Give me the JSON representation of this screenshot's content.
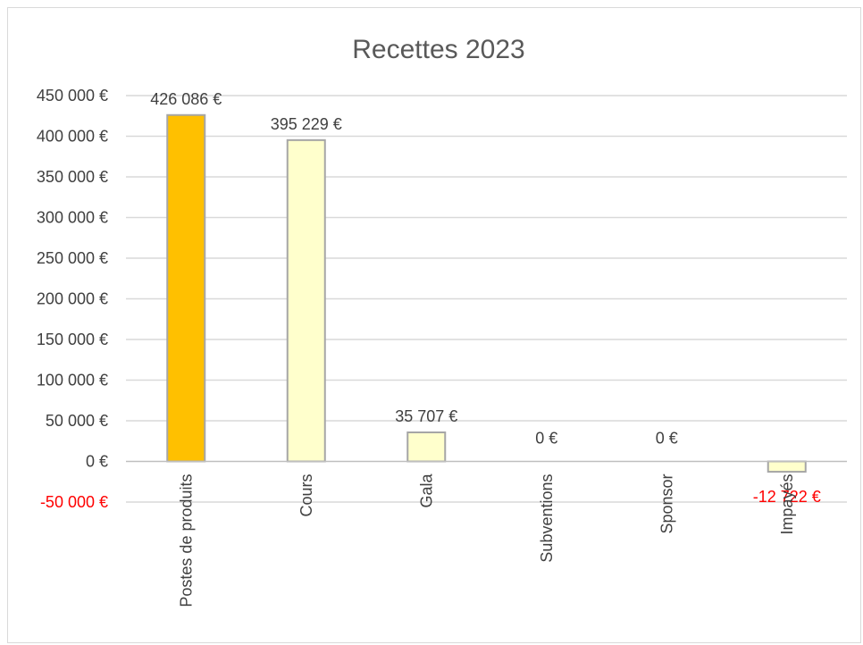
{
  "chart_data": {
    "type": "bar",
    "title": "Recettes 2023",
    "xlabel": "",
    "ylabel": "",
    "categories": [
      "Postes de produits",
      "Cours",
      "Gala",
      "Subventions",
      "Sponsor",
      "Impayés"
    ],
    "values": [
      426086,
      395229,
      35707,
      0,
      0,
      -12722
    ],
    "data_labels": [
      "426 086 €",
      "395 229 €",
      "35 707 €",
      "0 €",
      "0 €",
      "-12 722 €"
    ],
    "ylim": [
      -50000,
      450000
    ],
    "yticks": [
      -50000,
      0,
      50000,
      100000,
      150000,
      200000,
      250000,
      300000,
      350000,
      400000,
      450000
    ],
    "ytick_labels": [
      "-50 000 €",
      "0 €",
      "50 000 €",
      "100 000 €",
      "150 000 €",
      "200 000 €",
      "250 000 €",
      "300 000 €",
      "350 000 €",
      "400 000 €",
      "450 000 €"
    ],
    "grid": true,
    "legend": "none",
    "colors": {
      "bars": [
        "#ffc000",
        "#ffffcc",
        "#ffffcc",
        "#ffffcc",
        "#ffffcc",
        "#ffffcc"
      ],
      "bar_border": "#a6a6a6",
      "gridline": "#d9d9d9",
      "axis": "#bfbfbf",
      "negative_text": "#ff0000",
      "text": "#404040",
      "title": "#595959"
    }
  }
}
